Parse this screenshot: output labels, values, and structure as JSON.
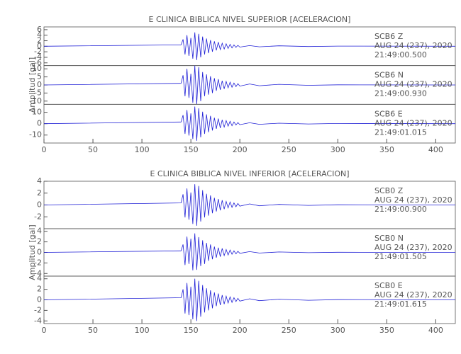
{
  "chart_data": [
    {
      "type": "line",
      "title": "E CLINICA BIBLICA NIVEL SUPERIOR [ACELERACION]",
      "ylabel": "Amplitud [gal]",
      "xlim": [
        0,
        420
      ],
      "xticks": [
        0,
        50,
        100,
        150,
        200,
        250,
        300,
        350,
        400
      ],
      "x": [
        0,
        140,
        142,
        144,
        146,
        148,
        150,
        152,
        154,
        156,
        158,
        160,
        162,
        164,
        166,
        168,
        170,
        172,
        174,
        176,
        178,
        180,
        182,
        184,
        186,
        188,
        190,
        192,
        194,
        196,
        198,
        200,
        210,
        220,
        240,
        270,
        300,
        420
      ],
      "series": [
        {
          "name": "SCB6   Z",
          "date": "AUG 24 (237), 2020",
          "time": "21:49:00.500",
          "color": "#1f1fd6",
          "ylim": [
            -7,
            7
          ],
          "yticks": [
            -6,
            -4,
            -2,
            0,
            2,
            4,
            6
          ],
          "values": [
            0,
            0.5,
            2.5,
            -3,
            4,
            -3.5,
            3,
            -4.5,
            5,
            -5,
            4.5,
            -4,
            3.5,
            -3,
            2.8,
            -2.5,
            2.2,
            -2,
            1.8,
            -1.5,
            1.5,
            -1.2,
            1.1,
            -1,
            0.9,
            -0.8,
            0.7,
            -0.6,
            0.5,
            -0.4,
            0.35,
            -0.3,
            0.25,
            -0.2,
            0.15,
            -0.1,
            0.05,
            0
          ]
        },
        {
          "name": "SCB6   N",
          "date": "AUG 24 (237), 2020",
          "time": "21:49:00.930",
          "color": "#1f1fd6",
          "ylim": [
            -12,
            12
          ],
          "yticks": [
            -10,
            -5,
            0,
            5,
            10
          ],
          "values": [
            0,
            1,
            6,
            -7,
            10,
            -8,
            7,
            -11,
            12,
            -12,
            11,
            -10,
            8,
            -7,
            6.6,
            -6,
            5.4,
            -5,
            4.2,
            -3.6,
            3.6,
            -3,
            2.6,
            -2.4,
            2.2,
            -1.8,
            1.7,
            -1.4,
            1.2,
            -1,
            0.8,
            -0.7,
            0.6,
            -0.5,
            0.4,
            -0.2,
            0.1,
            0
          ]
        },
        {
          "name": "SCB6   E",
          "date": "AUG 24 (237), 2020",
          "time": "21:49:01.015",
          "color": "#1f1fd6",
          "ylim": [
            -17,
            17
          ],
          "yticks": [
            -10,
            0,
            10
          ],
          "values": [
            0,
            1.5,
            7.5,
            -9,
            12,
            -10.5,
            9,
            -13.5,
            15,
            -15,
            13.5,
            -12,
            10.5,
            -9,
            8.2,
            -7.5,
            6.8,
            -6,
            5.2,
            -4.5,
            4.5,
            -3.8,
            3.3,
            -3,
            2.7,
            -2.2,
            2.1,
            -1.8,
            1.5,
            -1.2,
            1,
            -0.9,
            0.8,
            -0.6,
            0.4,
            -0.3,
            0.15,
            0
          ]
        }
      ]
    },
    {
      "type": "line",
      "title": "E CLINICA BIBLICA NIVEL INFERIOR [ACELERACION]",
      "ylabel": "Amplitud [gal]",
      "xlim": [
        0,
        420
      ],
      "xticks": [
        0,
        50,
        100,
        150,
        200,
        250,
        300,
        350,
        400
      ],
      "x": [
        0,
        140,
        142,
        144,
        146,
        148,
        150,
        152,
        154,
        156,
        158,
        160,
        162,
        164,
        166,
        168,
        170,
        172,
        174,
        176,
        178,
        180,
        182,
        184,
        186,
        188,
        190,
        192,
        194,
        196,
        198,
        200,
        210,
        220,
        240,
        270,
        300,
        420
      ],
      "series": [
        {
          "name": "SCB0   Z",
          "date": "AUG 24 (237), 2020",
          "time": "21:49:00.900",
          "color": "#1f1fd6",
          "ylim": [
            -4,
            4
          ],
          "yticks": [
            -2,
            0,
            2,
            4
          ],
          "values": [
            0,
            0.35,
            1.8,
            -2.1,
            2.8,
            -2.5,
            2.1,
            -3.2,
            3.5,
            -3.5,
            3.2,
            -2.8,
            2.5,
            -2.1,
            1.9,
            -1.8,
            1.6,
            -1.4,
            1.2,
            -1.1,
            1,
            -0.9,
            0.8,
            -0.7,
            0.6,
            -0.5,
            0.5,
            -0.4,
            0.35,
            -0.3,
            0.25,
            -0.2,
            0.18,
            -0.14,
            0.1,
            -0.07,
            0.04,
            0
          ]
        },
        {
          "name": "SCB0   N",
          "date": "AUG 24 (237), 2020",
          "time": "21:49:01.505",
          "color": "#1f1fd6",
          "ylim": [
            -4.5,
            4.5
          ],
          "yticks": [
            -4,
            -2,
            0,
            2,
            4
          ],
          "values": [
            0,
            0.3,
            1.5,
            -2.4,
            3,
            -2.2,
            2.6,
            -3.4,
            3.6,
            -3.3,
            2.9,
            -2.6,
            2.3,
            -2.2,
            1.8,
            -1.6,
            1.5,
            -1.3,
            1.1,
            -1,
            0.9,
            -0.8,
            0.75,
            -0.6,
            0.55,
            -0.5,
            0.45,
            -0.35,
            0.3,
            -0.28,
            0.22,
            -0.18,
            0.15,
            -0.12,
            0.08,
            -0.05,
            0.03,
            0
          ]
        },
        {
          "name": "SCB0   E",
          "date": "AUG 24 (237), 2020",
          "time": "21:49:01.615",
          "color": "#1f1fd6",
          "ylim": [
            -4.5,
            4.5
          ],
          "yticks": [
            -4,
            -2,
            0,
            2,
            4
          ],
          "values": [
            0,
            0.4,
            2,
            -2.6,
            3.2,
            -2.9,
            2.5,
            -3.7,
            4,
            -4,
            3.6,
            -3.2,
            2.8,
            -2.4,
            2.2,
            -2,
            1.8,
            -1.6,
            1.4,
            -1.2,
            1.2,
            -1,
            0.9,
            -0.8,
            0.7,
            -0.6,
            0.55,
            -0.48,
            0.4,
            -0.32,
            0.28,
            -0.24,
            0.2,
            -0.16,
            0.12,
            -0.08,
            0.04,
            0
          ]
        }
      ]
    }
  ]
}
